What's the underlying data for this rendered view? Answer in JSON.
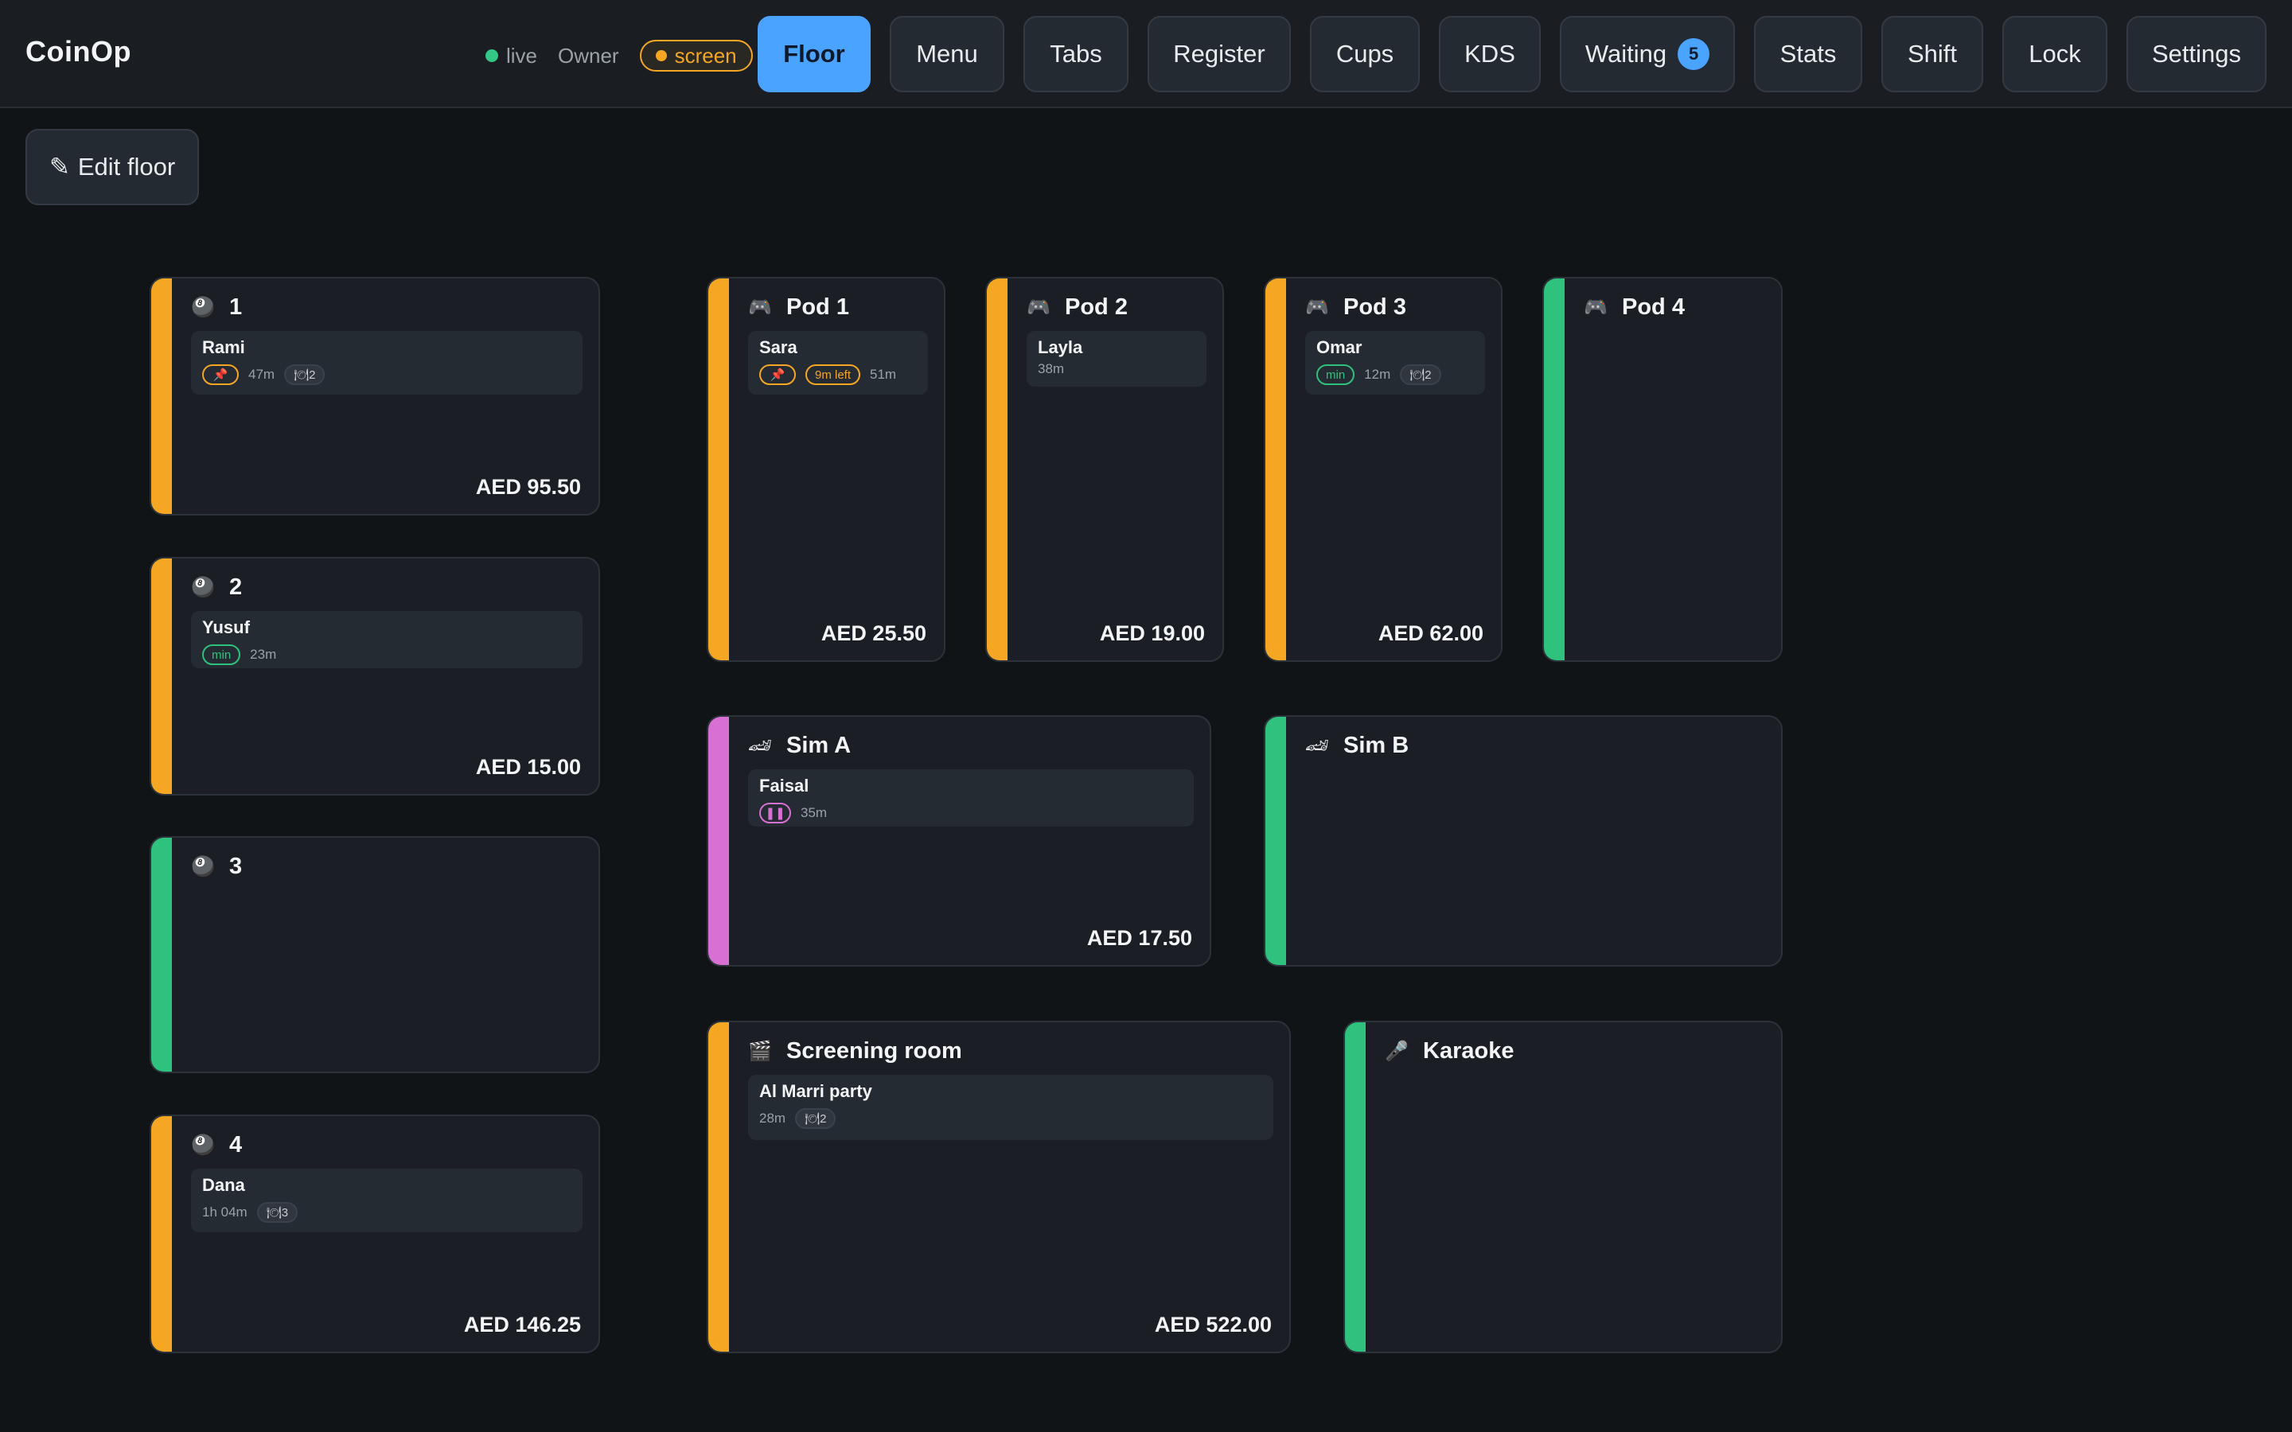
{
  "app": {
    "title": "CoinOp"
  },
  "status": {
    "live": "live",
    "role": "Owner",
    "mode": "screen"
  },
  "nav": {
    "floor": "Floor",
    "menu": "Menu",
    "tabs": "Tabs",
    "register": "Register",
    "cups": "Cups",
    "kds": "KDS",
    "waiting": "Waiting",
    "waiting_count": "5",
    "stats": "Stats",
    "shift": "Shift",
    "lock": "Lock",
    "settings": "Settings"
  },
  "toolbar": {
    "edit_floor": "Edit floor"
  },
  "status_colors": {
    "busy": "#f5a623",
    "free": "#2ec27e",
    "paused": "#d86fd3"
  },
  "tables": {
    "pool1": {
      "icon": "pool-ball-icon",
      "name": "1",
      "status": "busy",
      "guest": "Rami",
      "elapsed": "47m",
      "covers": "2",
      "total": "AED 95.50"
    },
    "pool2": {
      "icon": "pool-ball-icon",
      "name": "2",
      "status": "busy",
      "guest": "Yusuf",
      "chip": "min",
      "elapsed": "23m",
      "total": "AED 15.00"
    },
    "pool3": {
      "icon": "pool-ball-icon",
      "name": "3",
      "status": "free"
    },
    "pool4": {
      "icon": "pool-ball-icon",
      "name": "4",
      "status": "busy",
      "guest": "Dana",
      "elapsed": "1h 04m",
      "covers": "3",
      "total": "AED 146.25"
    },
    "pod1": {
      "icon": "gamepad-icon",
      "name": "Pod 1",
      "status": "busy",
      "guest": "Sara",
      "chip": "9m left",
      "elapsed": "51m",
      "total": "AED 25.50"
    },
    "pod2": {
      "icon": "gamepad-icon",
      "name": "Pod 2",
      "status": "busy",
      "guest": "Layla",
      "elapsed": "38m",
      "total": "AED 19.00"
    },
    "pod3": {
      "icon": "gamepad-icon",
      "name": "Pod 3",
      "status": "busy",
      "guest": "Omar",
      "chip": "min",
      "elapsed": "12m",
      "covers": "2",
      "total": "AED 62.00"
    },
    "pod4": {
      "icon": "gamepad-icon",
      "name": "Pod 4",
      "status": "free"
    },
    "simA": {
      "icon": "race-car-icon",
      "name": "Sim A",
      "status": "paused",
      "guest": "Faisal",
      "elapsed": "35m",
      "total": "AED 17.50"
    },
    "simB": {
      "icon": "race-car-icon",
      "name": "Sim B",
      "status": "free"
    },
    "screening": {
      "icon": "clapperboard-icon",
      "name": "Screening room",
      "status": "busy",
      "guest": "Al Marri party",
      "elapsed": "28m",
      "covers": "2",
      "total": "AED 522.00"
    },
    "karaoke": {
      "icon": "microphone-icon",
      "name": "Karaoke",
      "status": "free"
    }
  }
}
